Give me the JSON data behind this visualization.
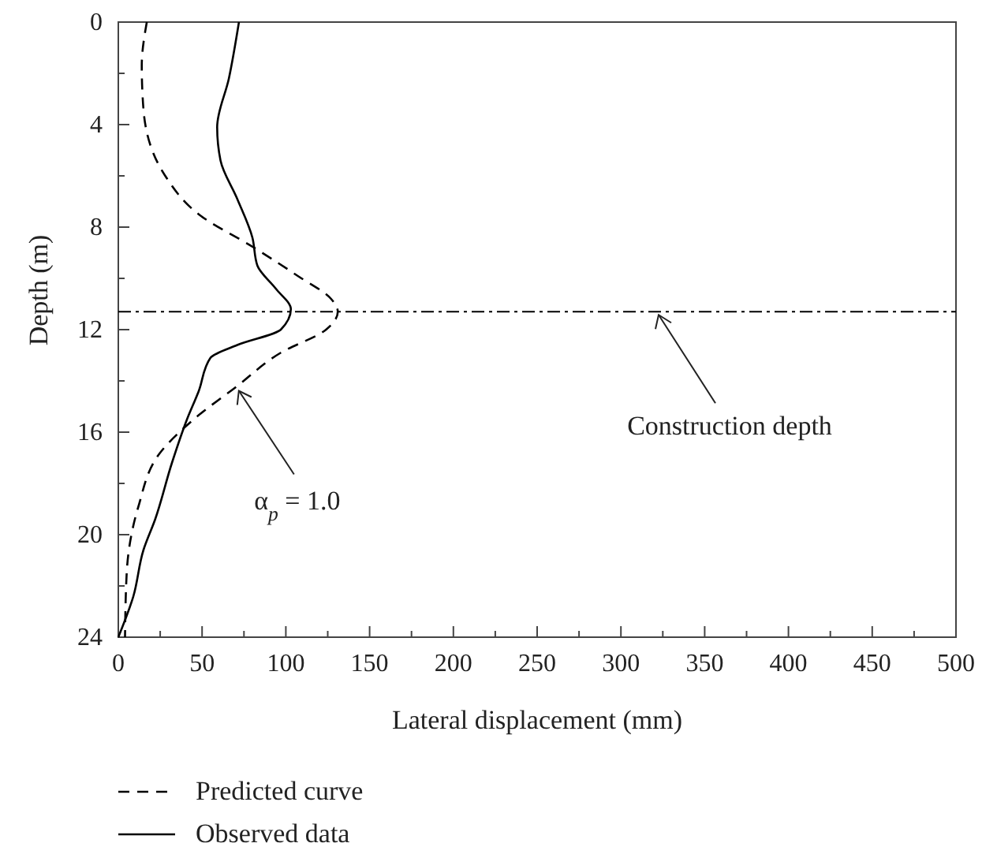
{
  "chart_data": {
    "type": "line",
    "xlabel": "Lateral displacement (mm)",
    "ylabel": "Depth (m)",
    "xlim": [
      0,
      500
    ],
    "xticks": [
      0,
      {
        "value": 25,
        "label": null
      },
      50,
      {
        "value": 75,
        "label": null
      },
      100,
      {
        "value": 125,
        "label": null
      },
      150,
      {
        "value": 175,
        "label": null
      },
      200,
      {
        "value": 225,
        "label": null
      },
      250,
      {
        "value": 275,
        "label": null
      },
      300,
      {
        "value": 325,
        "label": null
      },
      350,
      {
        "value": 375,
        "label": null
      },
      400,
      {
        "value": 425,
        "label": null
      },
      450,
      {
        "value": 475,
        "label": null
      },
      500
    ],
    "ylim": [
      24,
      0
    ],
    "yticks": [
      0,
      {
        "value": 2,
        "label": null
      },
      4,
      {
        "value": 6,
        "label": null
      },
      8,
      {
        "value": 10,
        "label": null
      },
      12,
      {
        "value": 14,
        "label": null
      },
      16,
      {
        "value": 18,
        "label": null
      },
      20,
      {
        "value": 22,
        "label": null
      },
      24
    ],
    "legend": "bottom",
    "grid": false,
    "marker": "none",
    "series": [
      {
        "name": "Predicted curve",
        "color": "#000000",
        "line_style": "dashed",
        "x": [
          17,
          14,
          15,
          28,
          48,
          81,
          107,
          127,
          131,
          124,
          97,
          71,
          45,
          25,
          12,
          5,
          4
        ],
        "values": [
          0,
          1.7,
          3.4,
          6,
          7.5,
          8.8,
          9.9,
          10.8,
          11.3,
          12,
          12.9,
          14.2,
          15.5,
          16.8,
          18.9,
          21.5,
          24
        ]
      },
      {
        "name": "Observed data",
        "color": "#000000",
        "line_style": "solid",
        "x": [
          72,
          66,
          59,
          61,
          71,
          80,
          83,
          94,
          103,
          97,
          71,
          55,
          48,
          41,
          32,
          22,
          15,
          9,
          0
        ],
        "values": [
          0,
          2.2,
          4.1,
          5.4,
          6.9,
          8.4,
          9.5,
          10.4,
          11.2,
          12,
          12.6,
          13.1,
          14.4,
          15.5,
          17.2,
          19.4,
          20.6,
          22.4,
          24
        ]
      }
    ],
    "ref_lines": [
      {
        "axis": "y",
        "value": 11.3,
        "label": "Construction depth",
        "line_style": "dashdot",
        "color": "#000000"
      }
    ],
    "annotations": [
      {
        "text": "α$_{p}$ = 1.0",
        "x": 71,
        "y": 14.2
      }
    ]
  }
}
